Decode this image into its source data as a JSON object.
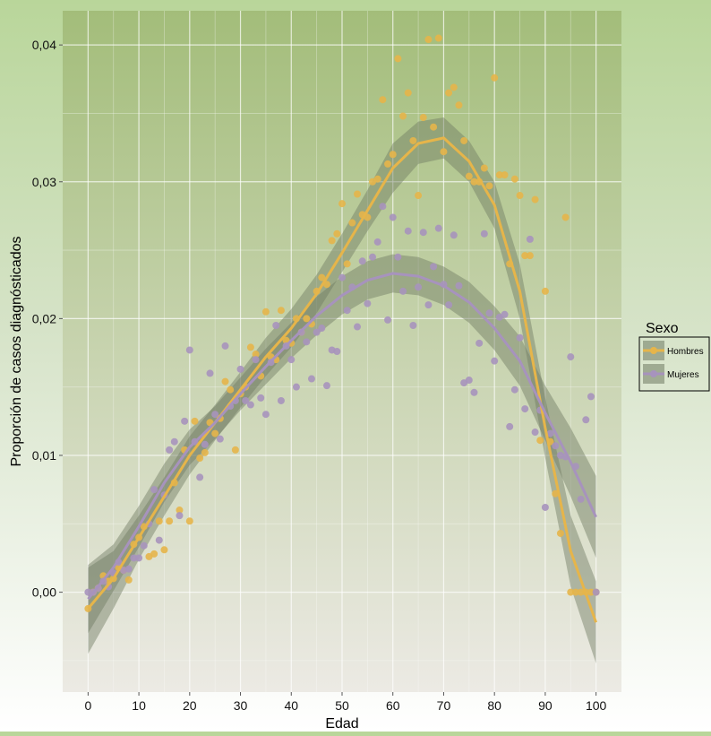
{
  "chart_data": {
    "type": "scatter",
    "xlabel": "Edad",
    "ylabel": "Proporción de casos diagnósticados",
    "xlim": [
      -5,
      105
    ],
    "ylim": [
      -0.0073,
      0.0425
    ],
    "xticks": [
      0,
      10,
      20,
      30,
      40,
      50,
      60,
      70,
      80,
      90,
      100
    ],
    "xtick_labels": [
      "0",
      "10",
      "20",
      "30",
      "40",
      "50",
      "60",
      "70",
      "80",
      "90",
      "100"
    ],
    "yticks": [
      0,
      0.01,
      0.02,
      0.03,
      0.04
    ],
    "ytick_labels": [
      "0,00",
      "0,01",
      "0,02",
      "0,03",
      "0,04"
    ],
    "grid": true,
    "legend": {
      "title": "Sexo",
      "position": "right",
      "entries": [
        "Hombres",
        "Mujeres"
      ]
    },
    "colors": {
      "Hombres": "#e6b54a",
      "Mujeres": "#a793bd",
      "band": "#6f7a62",
      "plot_top": "#a3bd7a",
      "plot_bottom": "#eceae4"
    },
    "series": [
      {
        "name": "Hombres",
        "points": [
          [
            0,
            -0.0012
          ],
          [
            1,
            0.0
          ],
          [
            2,
            0.0003
          ],
          [
            3,
            0.0012
          ],
          [
            4,
            0.0008
          ],
          [
            5,
            0.001
          ],
          [
            6,
            0.0018
          ],
          [
            7,
            0.0016
          ],
          [
            8,
            0.0009
          ],
          [
            9,
            0.0035
          ],
          [
            10,
            0.004
          ],
          [
            11,
            0.0048
          ],
          [
            12,
            0.0026
          ],
          [
            13,
            0.0028
          ],
          [
            14,
            0.0052
          ],
          [
            15,
            0.0031
          ],
          [
            16,
            0.0052
          ],
          [
            17,
            0.008
          ],
          [
            18,
            0.006
          ],
          [
            19,
            0.0104
          ],
          [
            20,
            0.0052
          ],
          [
            21,
            0.0125
          ],
          [
            22,
            0.0098
          ],
          [
            23,
            0.0102
          ],
          [
            24,
            0.0124
          ],
          [
            25,
            0.0116
          ],
          [
            26,
            0.0127
          ],
          [
            27,
            0.0154
          ],
          [
            28,
            0.0148
          ],
          [
            29,
            0.0104
          ],
          [
            30,
            0.0145
          ],
          [
            31,
            0.015
          ],
          [
            32,
            0.0179
          ],
          [
            33,
            0.0174
          ],
          [
            34,
            0.0158
          ],
          [
            35,
            0.0205
          ],
          [
            36,
            0.0172
          ],
          [
            37,
            0.017
          ],
          [
            38,
            0.0206
          ],
          [
            39,
            0.0184
          ],
          [
            40,
            0.0182
          ],
          [
            41,
            0.02
          ],
          [
            42,
            0.019
          ],
          [
            43,
            0.02
          ],
          [
            44,
            0.0196
          ],
          [
            45,
            0.022
          ],
          [
            46,
            0.023
          ],
          [
            47,
            0.0225
          ],
          [
            48,
            0.0257
          ],
          [
            49,
            0.0262
          ],
          [
            50,
            0.0284
          ],
          [
            51,
            0.024
          ],
          [
            52,
            0.027
          ],
          [
            53,
            0.0291
          ],
          [
            54,
            0.0276
          ],
          [
            55,
            0.0274
          ],
          [
            56,
            0.03
          ],
          [
            57,
            0.0302
          ],
          [
            58,
            0.036
          ],
          [
            59,
            0.0313
          ],
          [
            60,
            0.032
          ],
          [
            61,
            0.039
          ],
          [
            62,
            0.0348
          ],
          [
            63,
            0.0365
          ],
          [
            64,
            0.033
          ],
          [
            65,
            0.029
          ],
          [
            66,
            0.0347
          ],
          [
            67,
            0.0404
          ],
          [
            68,
            0.034
          ],
          [
            69,
            0.0405
          ],
          [
            70,
            0.0322
          ],
          [
            71,
            0.0365
          ],
          [
            72,
            0.0369
          ],
          [
            73,
            0.0356
          ],
          [
            74,
            0.033
          ],
          [
            75,
            0.0304
          ],
          [
            76,
            0.03
          ],
          [
            77,
            0.03
          ],
          [
            78,
            0.031
          ],
          [
            79,
            0.0297
          ],
          [
            80,
            0.0376
          ],
          [
            81,
            0.0305
          ],
          [
            82,
            0.0305
          ],
          [
            83,
            0.024
          ],
          [
            84,
            0.0302
          ],
          [
            85,
            0.029
          ],
          [
            86,
            0.0246
          ],
          [
            87,
            0.0246
          ],
          [
            88,
            0.0287
          ],
          [
            89,
            0.0111
          ],
          [
            90,
            0.022
          ],
          [
            91,
            0.011
          ],
          [
            92,
            0.0072
          ],
          [
            93,
            0.0043
          ],
          [
            94,
            0.0274
          ],
          [
            95,
            0.0
          ],
          [
            96,
            0.0
          ],
          [
            97,
            0.0
          ],
          [
            98,
            0.0
          ],
          [
            99,
            0.0
          ],
          [
            100,
            0.0
          ]
        ],
        "fit": [
          [
            0,
            -0.0012
          ],
          [
            5,
            0.001
          ],
          [
            10,
            0.004
          ],
          [
            15,
            0.007
          ],
          [
            20,
            0.01
          ],
          [
            25,
            0.0124
          ],
          [
            30,
            0.0148
          ],
          [
            35,
            0.0172
          ],
          [
            40,
            0.0193
          ],
          [
            45,
            0.0218
          ],
          [
            50,
            0.0248
          ],
          [
            55,
            0.0279
          ],
          [
            60,
            0.031
          ],
          [
            65,
            0.0328
          ],
          [
            70,
            0.0332
          ],
          [
            75,
            0.0315
          ],
          [
            80,
            0.0283
          ],
          [
            85,
            0.022
          ],
          [
            90,
            0.012
          ],
          [
            95,
            0.003
          ],
          [
            100,
            -0.0022
          ]
        ],
        "band": [
          [
            0,
            -0.0045,
            0.0018
          ],
          [
            5,
            -0.0012,
            0.003
          ],
          [
            10,
            0.0024,
            0.0056
          ],
          [
            15,
            0.0056,
            0.0084
          ],
          [
            20,
            0.0086,
            0.0114
          ],
          [
            25,
            0.0111,
            0.0137
          ],
          [
            30,
            0.0135,
            0.0161
          ],
          [
            35,
            0.0158,
            0.0186
          ],
          [
            40,
            0.0179,
            0.0207
          ],
          [
            45,
            0.0204,
            0.0232
          ],
          [
            50,
            0.0234,
            0.0262
          ],
          [
            55,
            0.0264,
            0.0294
          ],
          [
            60,
            0.0292,
            0.0328
          ],
          [
            65,
            0.0313,
            0.0344
          ],
          [
            70,
            0.0317,
            0.0347
          ],
          [
            75,
            0.03,
            0.033
          ],
          [
            80,
            0.0266,
            0.03
          ],
          [
            85,
            0.02,
            0.024
          ],
          [
            90,
            0.0098,
            0.0142
          ],
          [
            95,
            0.0004,
            0.0056
          ],
          [
            100,
            -0.0052,
            0.0008
          ]
        ]
      },
      {
        "name": "Mujeres",
        "points": [
          [
            0,
            0.0
          ],
          [
            1,
            0.0
          ],
          [
            2,
            0.0003
          ],
          [
            3,
            0.0008
          ],
          [
            4,
            0.0004
          ],
          [
            5,
            0.0014
          ],
          [
            6,
            0.0022
          ],
          [
            7,
            0.0016
          ],
          [
            8,
            0.0017
          ],
          [
            9,
            0.0025
          ],
          [
            10,
            0.0025
          ],
          [
            11,
            0.0034
          ],
          [
            12,
            0.005
          ],
          [
            13,
            0.0075
          ],
          [
            14,
            0.0038
          ],
          [
            15,
            0.0071
          ],
          [
            16,
            0.0104
          ],
          [
            17,
            0.011
          ],
          [
            18,
            0.0056
          ],
          [
            19,
            0.0125
          ],
          [
            20,
            0.0177
          ],
          [
            21,
            0.011
          ],
          [
            22,
            0.0084
          ],
          [
            23,
            0.0108
          ],
          [
            24,
            0.016
          ],
          [
            25,
            0.013
          ],
          [
            26,
            0.0112
          ],
          [
            27,
            0.018
          ],
          [
            28,
            0.0136
          ],
          [
            29,
            0.014
          ],
          [
            30,
            0.0163
          ],
          [
            31,
            0.014
          ],
          [
            32,
            0.0137
          ],
          [
            33,
            0.017
          ],
          [
            34,
            0.0142
          ],
          [
            35,
            0.013
          ],
          [
            36,
            0.0168
          ],
          [
            37,
            0.0195
          ],
          [
            38,
            0.014
          ],
          [
            39,
            0.018
          ],
          [
            40,
            0.017
          ],
          [
            41,
            0.015
          ],
          [
            42,
            0.019
          ],
          [
            43,
            0.0183
          ],
          [
            44,
            0.0156
          ],
          [
            45,
            0.019
          ],
          [
            46,
            0.0193
          ],
          [
            47,
            0.0151
          ],
          [
            48,
            0.0177
          ],
          [
            49,
            0.0176
          ],
          [
            50,
            0.023
          ],
          [
            51,
            0.0206
          ],
          [
            52,
            0.0223
          ],
          [
            53,
            0.0194
          ],
          [
            54,
            0.0242
          ],
          [
            55,
            0.0211
          ],
          [
            56,
            0.0245
          ],
          [
            57,
            0.0256
          ],
          [
            58,
            0.0282
          ],
          [
            59,
            0.0199
          ],
          [
            60,
            0.0274
          ],
          [
            61,
            0.0245
          ],
          [
            62,
            0.022
          ],
          [
            63,
            0.0264
          ],
          [
            64,
            0.0195
          ],
          [
            65,
            0.0223
          ],
          [
            66,
            0.0263
          ],
          [
            67,
            0.021
          ],
          [
            68,
            0.0238
          ],
          [
            69,
            0.0266
          ],
          [
            70,
            0.0225
          ],
          [
            71,
            0.021
          ],
          [
            72,
            0.0261
          ],
          [
            73,
            0.0224
          ],
          [
            74,
            0.0153
          ],
          [
            75,
            0.0155
          ],
          [
            76,
            0.0146
          ],
          [
            77,
            0.0182
          ],
          [
            78,
            0.0262
          ],
          [
            79,
            0.0204
          ],
          [
            80,
            0.0169
          ],
          [
            81,
            0.0201
          ],
          [
            82,
            0.0203
          ],
          [
            83,
            0.0121
          ],
          [
            84,
            0.0148
          ],
          [
            85,
            0.0186
          ],
          [
            86,
            0.0134
          ],
          [
            87,
            0.0258
          ],
          [
            88,
            0.0117
          ],
          [
            89,
            0.0133
          ],
          [
            90,
            0.0062
          ],
          [
            91,
            0.0116
          ],
          [
            92,
            0.0107
          ],
          [
            93,
            0.01
          ],
          [
            94,
            0.0099
          ],
          [
            95,
            0.0172
          ],
          [
            96,
            0.0092
          ],
          [
            97,
            0.0068
          ],
          [
            98,
            0.0126
          ],
          [
            99,
            0.0143
          ],
          [
            100,
            0.0
          ]
        ],
        "fit": [
          [
            0,
            -0.0005
          ],
          [
            5,
            0.0018
          ],
          [
            10,
            0.0048
          ],
          [
            15,
            0.008
          ],
          [
            20,
            0.0106
          ],
          [
            25,
            0.0124
          ],
          [
            30,
            0.0145
          ],
          [
            35,
            0.0165
          ],
          [
            40,
            0.0184
          ],
          [
            45,
            0.0202
          ],
          [
            50,
            0.0217
          ],
          [
            55,
            0.0228
          ],
          [
            60,
            0.0233
          ],
          [
            65,
            0.0231
          ],
          [
            70,
            0.0224
          ],
          [
            75,
            0.0212
          ],
          [
            80,
            0.0193
          ],
          [
            85,
            0.0169
          ],
          [
            90,
            0.0131
          ],
          [
            95,
            0.0095
          ],
          [
            100,
            0.0055
          ]
        ],
        "band": [
          [
            0,
            -0.003,
            0.002
          ],
          [
            5,
            0.0001,
            0.0035
          ],
          [
            10,
            0.0033,
            0.0063
          ],
          [
            15,
            0.0066,
            0.0094
          ],
          [
            20,
            0.0093,
            0.0119
          ],
          [
            25,
            0.0112,
            0.0136
          ],
          [
            30,
            0.0133,
            0.0157
          ],
          [
            35,
            0.0152,
            0.0178
          ],
          [
            40,
            0.0171,
            0.0197
          ],
          [
            45,
            0.0188,
            0.0216
          ],
          [
            50,
            0.0203,
            0.0231
          ],
          [
            55,
            0.0214,
            0.0242
          ],
          [
            60,
            0.0219,
            0.0247
          ],
          [
            65,
            0.0217,
            0.0245
          ],
          [
            70,
            0.021,
            0.0238
          ],
          [
            75,
            0.0197,
            0.0227
          ],
          [
            80,
            0.0177,
            0.0209
          ],
          [
            85,
            0.0151,
            0.0187
          ],
          [
            90,
            0.0111,
            0.0151
          ],
          [
            95,
            0.007,
            0.012
          ],
          [
            100,
            0.0025,
            0.0085
          ]
        ]
      }
    ]
  }
}
